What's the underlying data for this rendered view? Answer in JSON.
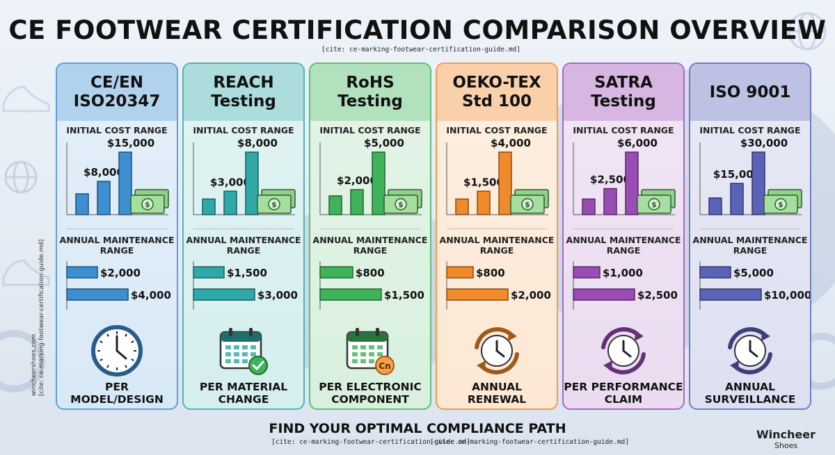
{
  "header": {
    "title": "CE FOOTWEAR CERTIFICATION COMPARISON OVERVIEW",
    "cite": "[cite: ce-marking-footwear-certification-guide.md]"
  },
  "side_text": {
    "line1": "wincheershoes.com",
    "line2": "[cite: ce-marking-footwear-certification-guide.md]"
  },
  "labels": {
    "initial": "INITIAL COST RANGE",
    "annual_1": "ANNUAL MAINTENANCE",
    "annual_2": "RANGE"
  },
  "footer": {
    "title": "FIND YOUR OPTIMAL COMPLIANCE PATH",
    "cite_left": "[cite: ce-marking-footwear-certification-guide.md]",
    "cite_right": "[cite: ce-marking-footwear-certification-guide.md]"
  },
  "brand": {
    "line1": "Wincheer",
    "line2": "Shoes"
  },
  "colors": {
    "ce": "#3d8fd1",
    "reach": "#2fa8a8",
    "rohs": "#3fb35a",
    "oeko": "#f08a2a",
    "satra": "#9a4cb5",
    "iso": "#5a63b8"
  },
  "chart_data": [
    {
      "type": "bar",
      "name_lines": [
        "CE/EN",
        "ISO20347"
      ],
      "color": "#3d8fd1",
      "initial_cost": {
        "values": [
          5000,
          8000,
          15000
        ],
        "labels": [
          "",
          "$8,000",
          "$15,000"
        ]
      },
      "annual_maintenance": {
        "values": [
          2000,
          4000
        ],
        "labels": [
          "$2,000",
          "$4,000"
        ]
      },
      "frequency_icon": "clock-icon",
      "frequency_lines": [
        "PER",
        "MODEL/DESIGN"
      ]
    },
    {
      "type": "bar",
      "name_lines": [
        "REACH",
        "Testing"
      ],
      "color": "#2fa8a8",
      "initial_cost": {
        "values": [
          2000,
          3000,
          8000
        ],
        "labels": [
          "",
          "$3,000",
          "$8,000"
        ]
      },
      "annual_maintenance": {
        "values": [
          1500,
          3000
        ],
        "labels": [
          "$1,500",
          "$3,000"
        ]
      },
      "frequency_icon": "calendar-check-icon",
      "frequency_lines": [
        "PER MATERIAL",
        "CHANGE"
      ]
    },
    {
      "type": "bar",
      "name_lines": [
        "RoHS",
        "Testing"
      ],
      "color": "#3fb35a",
      "initial_cost": {
        "values": [
          1500,
          2000,
          5000
        ],
        "labels": [
          "",
          "$2,000",
          "$5,000"
        ]
      },
      "annual_maintenance": {
        "values": [
          800,
          1500
        ],
        "labels": [
          "$800",
          "$1,500"
        ]
      },
      "frequency_icon": "calendar-component-icon",
      "frequency_lines": [
        "PER ELECTRONIC",
        "COMPONENT"
      ]
    },
    {
      "type": "bar",
      "name_lines": [
        "OEKO-TEX",
        "Std 100"
      ],
      "color": "#f08a2a",
      "initial_cost": {
        "values": [
          1000,
          1500,
          4000
        ],
        "labels": [
          "",
          "$1,500",
          "$4,000"
        ]
      },
      "annual_maintenance": {
        "values": [
          800,
          2000
        ],
        "labels": [
          "$800",
          "$2,000"
        ]
      },
      "frequency_icon": "renewal-clock-icon",
      "frequency_lines": [
        "ANNUAL",
        "RENEWAL"
      ]
    },
    {
      "type": "bar",
      "name_lines": [
        "SATRA",
        "Testing"
      ],
      "color": "#9a4cb5",
      "initial_cost": {
        "values": [
          1500,
          2500,
          6000
        ],
        "labels": [
          "",
          "$2,500",
          "$6,000"
        ]
      },
      "annual_maintenance": {
        "values": [
          1000,
          2500
        ],
        "labels": [
          "$1,000",
          "$2,500"
        ]
      },
      "frequency_icon": "renewal-clock-icon",
      "frequency_lines": [
        "PER PERFORMANCE",
        "CLAIM"
      ]
    },
    {
      "type": "bar",
      "name_lines": [
        "ISO 9001"
      ],
      "color": "#5a63b8",
      "initial_cost": {
        "values": [
          8000,
          15000,
          30000
        ],
        "labels": [
          "",
          "$15,000",
          "$30,000"
        ]
      },
      "annual_maintenance": {
        "values": [
          5000,
          10000
        ],
        "labels": [
          "$5,000",
          "$10,000"
        ]
      },
      "frequency_icon": "renewal-clock-icon",
      "frequency_lines": [
        "ANNUAL",
        "SURVEILLANCE"
      ]
    }
  ]
}
